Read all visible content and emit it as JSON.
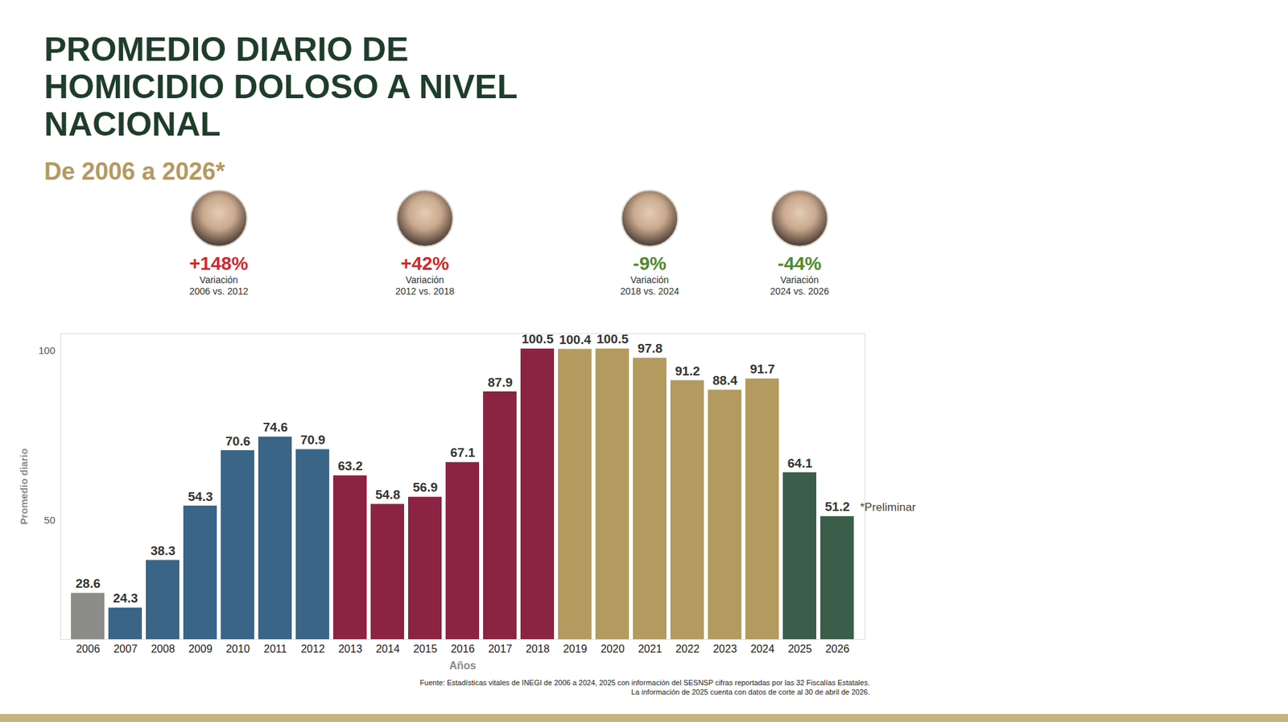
{
  "chart_data": {
    "type": "bar",
    "title": "PROMEDIO DIARIO DE HOMICIDIO DOLOSO A NIVEL NACIONAL",
    "subtitle": "De 2006 a 2026*",
    "xlabel": "Años",
    "ylabel": "Promedio diario",
    "categories": [
      "2006",
      "2007",
      "2008",
      "2009",
      "2010",
      "2011",
      "2012",
      "2013",
      "2014",
      "2015",
      "2016",
      "2017",
      "2018",
      "2019",
      "2020",
      "2021",
      "2022",
      "2023",
      "2024",
      "2025",
      "2026"
    ],
    "values": [
      28.6,
      24.3,
      38.3,
      54.3,
      70.6,
      74.6,
      70.9,
      63.2,
      54.8,
      56.9,
      67.1,
      87.9,
      100.5,
      100.4,
      100.5,
      97.8,
      91.2,
      88.4,
      91.7,
      64.1,
      51.2
    ],
    "colors": [
      "#8c8c89",
      "#3a6587",
      "#3a6587",
      "#3a6587",
      "#3a6587",
      "#3a6587",
      "#3a6587",
      "#8b2443",
      "#8b2443",
      "#8b2443",
      "#8b2443",
      "#8b2443",
      "#8b2443",
      "#b39a5f",
      "#b39a5f",
      "#b39a5f",
      "#b39a5f",
      "#b39a5f",
      "#b39a5f",
      "#3b5e4b",
      "#3b5e4b"
    ],
    "ylim": [
      15,
      105
    ],
    "yticks": [
      50,
      100
    ],
    "grid": false,
    "data_labels": true,
    "note": "*Preliminar",
    "annotations": [
      {
        "label": "+148%",
        "text": "Variación",
        "period": "2006 vs. 2012",
        "color": "#d0282e"
      },
      {
        "label": "+42%",
        "text": "Variación",
        "period": "2012 vs. 2018",
        "color": "#d0282e"
      },
      {
        "label": "-9%",
        "text": "Variación",
        "period": "2018 vs. 2024",
        "color": "#4f8a2b"
      },
      {
        "label": "-44%",
        "text": "Variación",
        "period": "2024 vs. 2026",
        "color": "#4f8a2b"
      }
    ],
    "source": [
      "Fuente: Estadísticas vitales de INEGI de 2006 a 2024, 2025 con información del SESNSP cifras reportadas por las 32 Fiscalías Estatales.",
      "La información de 2025 cuenta con datos de corte al 30 de abril de 2026."
    ]
  }
}
